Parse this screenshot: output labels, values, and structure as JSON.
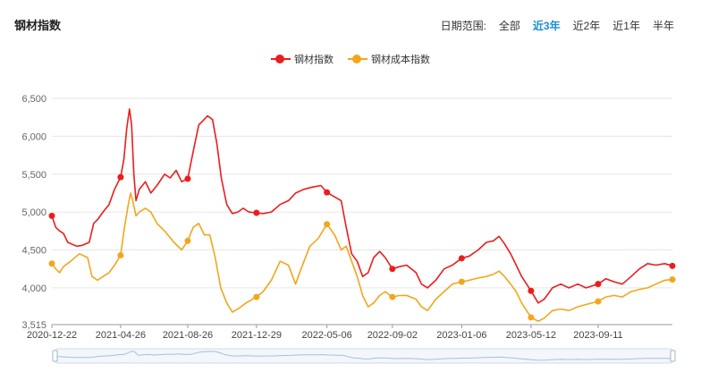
{
  "title": "钢材指数",
  "range": {
    "label": "日期范围:",
    "options": [
      "全部",
      "近3年",
      "近2年",
      "近1年",
      "半年"
    ],
    "active_index": 1
  },
  "colors": {
    "series1": "#ee1c1c",
    "series2": "#f5a51c",
    "grid": "#e6e6e6"
  },
  "chart_data": {
    "type": "line",
    "xlabel": "",
    "ylabel": "",
    "ylim": [
      3515,
      6500
    ],
    "yticks": [
      6500,
      6000,
      5500,
      5000,
      4500,
      4000,
      3515
    ],
    "ytick_labels": [
      "6,500",
      "6,000",
      "5,500",
      "5,000",
      "4,500",
      "4,000",
      "3,515"
    ],
    "x_range": [
      "2020-12-22",
      "2024-01-24"
    ],
    "xticks": [
      "2020-12-22",
      "2021-04-26",
      "2021-08-26",
      "2021-12-29",
      "2022-05-06",
      "2022-09-02",
      "2023-01-06",
      "2023-05-12",
      "2023-09-11"
    ],
    "legend_position": "top-center",
    "grid": true,
    "series": [
      {
        "name": "钢材指数",
        "points": [
          [
            "2020-12-22",
            4950
          ],
          [
            "2020-12-29",
            4800
          ],
          [
            "2021-01-05",
            4750
          ],
          [
            "2021-01-12",
            4720
          ],
          [
            "2021-01-20",
            4600
          ],
          [
            "2021-02-05",
            4550
          ],
          [
            "2021-02-15",
            4560
          ],
          [
            "2021-02-28",
            4600
          ],
          [
            "2021-03-08",
            4850
          ],
          [
            "2021-03-15",
            4900
          ],
          [
            "2021-03-25",
            5000
          ],
          [
            "2021-04-05",
            5100
          ],
          [
            "2021-04-15",
            5300
          ],
          [
            "2021-04-26",
            5460
          ],
          [
            "2021-05-02",
            5700
          ],
          [
            "2021-05-07",
            6100
          ],
          [
            "2021-05-12",
            6360
          ],
          [
            "2021-05-16",
            6150
          ],
          [
            "2021-05-20",
            5500
          ],
          [
            "2021-05-24",
            5150
          ],
          [
            "2021-05-30",
            5300
          ],
          [
            "2021-06-10",
            5400
          ],
          [
            "2021-06-20",
            5250
          ],
          [
            "2021-07-01",
            5350
          ],
          [
            "2021-07-15",
            5500
          ],
          [
            "2021-07-25",
            5450
          ],
          [
            "2021-08-05",
            5550
          ],
          [
            "2021-08-15",
            5400
          ],
          [
            "2021-08-26",
            5440
          ],
          [
            "2021-09-05",
            5800
          ],
          [
            "2021-09-15",
            6150
          ],
          [
            "2021-09-22",
            6200
          ],
          [
            "2021-10-01",
            6270
          ],
          [
            "2021-10-10",
            6220
          ],
          [
            "2021-10-18",
            5900
          ],
          [
            "2021-10-26",
            5450
          ],
          [
            "2021-11-05",
            5100
          ],
          [
            "2021-11-15",
            4980
          ],
          [
            "2021-11-25",
            5000
          ],
          [
            "2021-12-05",
            5050
          ],
          [
            "2021-12-15",
            5000
          ],
          [
            "2021-12-29",
            4990
          ],
          [
            "2022-01-10",
            4980
          ],
          [
            "2022-01-25",
            5000
          ],
          [
            "2022-02-10",
            5100
          ],
          [
            "2022-02-25",
            5150
          ],
          [
            "2022-03-10",
            5250
          ],
          [
            "2022-03-25",
            5300
          ],
          [
            "2022-04-10",
            5330
          ],
          [
            "2022-04-25",
            5350
          ],
          [
            "2022-05-06",
            5260
          ],
          [
            "2022-05-20",
            5200
          ],
          [
            "2022-06-01",
            5150
          ],
          [
            "2022-06-10",
            4800
          ],
          [
            "2022-06-20",
            4450
          ],
          [
            "2022-06-30",
            4350
          ],
          [
            "2022-07-10",
            4150
          ],
          [
            "2022-07-20",
            4200
          ],
          [
            "2022-07-30",
            4400
          ],
          [
            "2022-08-10",
            4480
          ],
          [
            "2022-08-20",
            4400
          ],
          [
            "2022-09-02",
            4250
          ],
          [
            "2022-09-15",
            4280
          ],
          [
            "2022-09-28",
            4300
          ],
          [
            "2022-10-15",
            4200
          ],
          [
            "2022-10-25",
            4050
          ],
          [
            "2022-11-05",
            4000
          ],
          [
            "2022-11-20",
            4100
          ],
          [
            "2022-12-05",
            4250
          ],
          [
            "2022-12-20",
            4300
          ],
          [
            "2023-01-06",
            4390
          ],
          [
            "2023-01-20",
            4420
          ],
          [
            "2023-02-05",
            4500
          ],
          [
            "2023-02-20",
            4600
          ],
          [
            "2023-03-05",
            4620
          ],
          [
            "2023-03-15",
            4680
          ],
          [
            "2023-03-25",
            4580
          ],
          [
            "2023-04-05",
            4450
          ],
          [
            "2023-04-15",
            4300
          ],
          [
            "2023-04-25",
            4150
          ],
          [
            "2023-05-12",
            3960
          ],
          [
            "2023-05-25",
            3800
          ],
          [
            "2023-06-05",
            3850
          ],
          [
            "2023-06-20",
            4000
          ],
          [
            "2023-07-05",
            4050
          ],
          [
            "2023-07-20",
            4000
          ],
          [
            "2023-08-05",
            4050
          ],
          [
            "2023-08-20",
            4000
          ],
          [
            "2023-09-11",
            4050
          ],
          [
            "2023-09-25",
            4120
          ],
          [
            "2023-10-10",
            4080
          ],
          [
            "2023-10-25",
            4050
          ],
          [
            "2023-11-10",
            4150
          ],
          [
            "2023-11-25",
            4250
          ],
          [
            "2023-12-10",
            4320
          ],
          [
            "2023-12-25",
            4300
          ],
          [
            "2024-01-10",
            4320
          ],
          [
            "2024-01-24",
            4290
          ]
        ]
      },
      {
        "name": "钢材成本指数",
        "points": [
          [
            "2020-12-22",
            4320
          ],
          [
            "2020-12-29",
            4250
          ],
          [
            "2021-01-05",
            4200
          ],
          [
            "2021-01-12",
            4280
          ],
          [
            "2021-01-25",
            4350
          ],
          [
            "2021-02-10",
            4450
          ],
          [
            "2021-02-25",
            4400
          ],
          [
            "2021-03-05",
            4150
          ],
          [
            "2021-03-15",
            4100
          ],
          [
            "2021-03-25",
            4150
          ],
          [
            "2021-04-05",
            4200
          ],
          [
            "2021-04-15",
            4300
          ],
          [
            "2021-04-26",
            4430
          ],
          [
            "2021-05-03",
            4800
          ],
          [
            "2021-05-10",
            5100
          ],
          [
            "2021-05-14",
            5250
          ],
          [
            "2021-05-18",
            5150
          ],
          [
            "2021-05-24",
            4950
          ],
          [
            "2021-05-30",
            5000
          ],
          [
            "2021-06-10",
            5050
          ],
          [
            "2021-06-20",
            5000
          ],
          [
            "2021-07-01",
            4850
          ],
          [
            "2021-07-15",
            4750
          ],
          [
            "2021-08-01",
            4600
          ],
          [
            "2021-08-15",
            4500
          ],
          [
            "2021-08-26",
            4620
          ],
          [
            "2021-09-05",
            4800
          ],
          [
            "2021-09-15",
            4850
          ],
          [
            "2021-09-25",
            4700
          ],
          [
            "2021-10-05",
            4700
          ],
          [
            "2021-10-15",
            4400
          ],
          [
            "2021-10-25",
            4000
          ],
          [
            "2021-11-05",
            3800
          ],
          [
            "2021-11-15",
            3680
          ],
          [
            "2021-11-25",
            3720
          ],
          [
            "2021-12-10",
            3800
          ],
          [
            "2021-12-29",
            3880
          ],
          [
            "2022-01-10",
            3950
          ],
          [
            "2022-01-25",
            4100
          ],
          [
            "2022-02-10",
            4350
          ],
          [
            "2022-02-25",
            4300
          ],
          [
            "2022-03-10",
            4050
          ],
          [
            "2022-03-20",
            4250
          ],
          [
            "2022-04-05",
            4550
          ],
          [
            "2022-04-20",
            4650
          ],
          [
            "2022-05-06",
            4840
          ],
          [
            "2022-05-20",
            4700
          ],
          [
            "2022-06-01",
            4500
          ],
          [
            "2022-06-10",
            4550
          ],
          [
            "2022-06-20",
            4350
          ],
          [
            "2022-06-30",
            4150
          ],
          [
            "2022-07-10",
            3900
          ],
          [
            "2022-07-20",
            3750
          ],
          [
            "2022-07-30",
            3800
          ],
          [
            "2022-08-10",
            3900
          ],
          [
            "2022-08-20",
            3950
          ],
          [
            "2022-09-02",
            3880
          ],
          [
            "2022-09-15",
            3900
          ],
          [
            "2022-09-28",
            3900
          ],
          [
            "2022-10-15",
            3850
          ],
          [
            "2022-10-25",
            3750
          ],
          [
            "2022-11-05",
            3700
          ],
          [
            "2022-11-20",
            3850
          ],
          [
            "2022-12-05",
            3950
          ],
          [
            "2022-12-20",
            4050
          ],
          [
            "2023-01-06",
            4080
          ],
          [
            "2023-01-20",
            4100
          ],
          [
            "2023-02-05",
            4130
          ],
          [
            "2023-02-20",
            4150
          ],
          [
            "2023-03-05",
            4180
          ],
          [
            "2023-03-15",
            4220
          ],
          [
            "2023-03-25",
            4150
          ],
          [
            "2023-04-05",
            4050
          ],
          [
            "2023-04-15",
            3950
          ],
          [
            "2023-04-25",
            3800
          ],
          [
            "2023-05-12",
            3610
          ],
          [
            "2023-05-25",
            3560
          ],
          [
            "2023-06-05",
            3600
          ],
          [
            "2023-06-20",
            3700
          ],
          [
            "2023-07-05",
            3720
          ],
          [
            "2023-07-20",
            3700
          ],
          [
            "2023-08-05",
            3750
          ],
          [
            "2023-08-20",
            3780
          ],
          [
            "2023-09-11",
            3820
          ],
          [
            "2023-09-25",
            3880
          ],
          [
            "2023-10-10",
            3900
          ],
          [
            "2023-10-25",
            3880
          ],
          [
            "2023-11-10",
            3950
          ],
          [
            "2023-11-25",
            3980
          ],
          [
            "2023-12-10",
            4000
          ],
          [
            "2023-12-25",
            4050
          ],
          [
            "2024-01-10",
            4100
          ],
          [
            "2024-01-24",
            4110
          ]
        ]
      }
    ],
    "markers": [
      [
        "2020-12-22",
        "2021-04-26",
        "2021-08-26",
        "2021-12-29",
        "2022-05-06",
        "2022-09-02",
        "2023-01-06",
        "2023-05-12",
        "2023-09-11",
        "2024-01-24"
      ],
      [
        "2020-12-22",
        "2021-04-26",
        "2021-08-26",
        "2021-12-29",
        "2022-05-06",
        "2022-09-02",
        "2023-01-06",
        "2023-05-12",
        "2023-09-11",
        "2024-01-24"
      ]
    ]
  }
}
